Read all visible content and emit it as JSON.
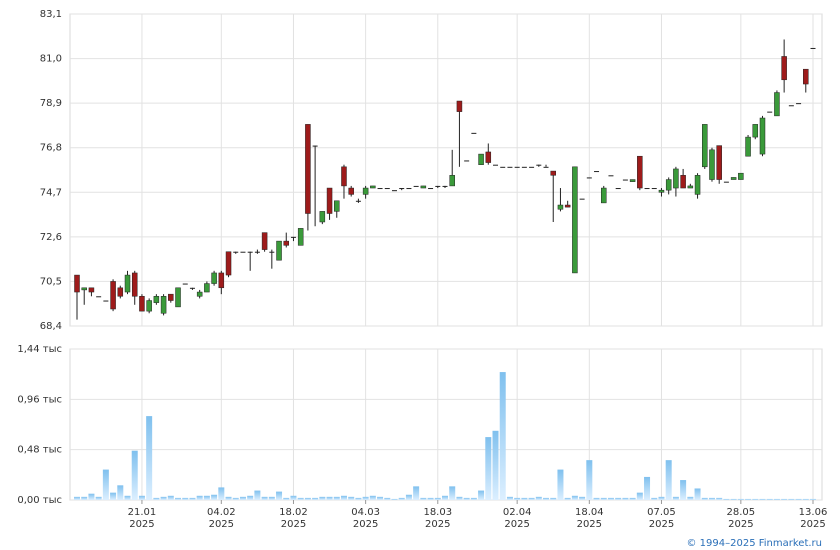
{
  "chart_data": {
    "type": "candlestick",
    "categories": [
      null,
      null,
      null,
      null,
      null,
      null,
      null,
      null,
      null,
      "21.01\n2025",
      null,
      null,
      null,
      null,
      null,
      null,
      null,
      null,
      null,
      null,
      "04.02\n2025",
      null,
      null,
      null,
      null,
      null,
      null,
      null,
      null,
      null,
      "18.02\n2025",
      null,
      null,
      null,
      null,
      null,
      null,
      null,
      null,
      null,
      "04.03\n2025",
      null,
      null,
      null,
      null,
      null,
      null,
      null,
      null,
      null,
      "18.03\n2025",
      null,
      null,
      null,
      null,
      null,
      null,
      null,
      null,
      null,
      null,
      "02.04\n2025",
      null,
      null,
      null,
      null,
      null,
      null,
      null,
      null,
      null,
      "18.04\n2025",
      null,
      null,
      null,
      null,
      null,
      null,
      null,
      null,
      null,
      "07.05\n2025",
      null,
      null,
      null,
      null,
      null,
      null,
      null,
      null,
      null,
      null,
      "28.05\n2025",
      null,
      null,
      null,
      null,
      null,
      null,
      null,
      null,
      null,
      "13.06\n2025"
    ],
    "open": [
      70.8,
      70.1,
      70.2,
      69.8,
      69.6,
      70.5,
      70.2,
      70.0,
      70.9,
      69.8,
      69.1,
      69.5,
      69.0,
      69.9,
      69.3,
      70.4,
      70.2,
      69.8,
      70.0,
      70.4,
      70.9,
      71.9,
      71.9,
      71.9,
      71.9,
      71.9,
      72.8,
      71.9,
      71.5,
      72.4,
      72.6,
      72.2,
      77.9,
      76.9,
      73.3,
      74.9,
      73.8,
      75.9,
      74.9,
      74.3,
      74.6,
      74.9,
      74.9,
      74.9,
      74.8,
      74.9,
      74.9,
      75.0,
      74.9,
      74.9,
      75.0,
      75.0,
      75.0,
      79.0,
      76.2,
      77.5,
      76.0,
      76.6,
      76.0,
      75.9,
      75.9,
      75.9,
      75.9,
      75.9,
      76.0,
      75.9,
      75.7,
      73.9,
      74.1,
      70.9,
      74.4,
      75.4,
      75.7,
      74.2,
      75.5,
      74.9,
      75.3,
      75.2,
      76.4,
      74.9,
      74.9,
      74.7,
      74.8,
      74.9,
      75.5,
      74.9,
      74.6,
      75.9,
      75.3,
      76.9,
      75.2,
      75.3,
      75.3,
      76.4,
      77.3,
      76.5,
      78.5,
      78.3,
      81.1,
      78.8,
      78.9,
      80.5,
      81.5
    ],
    "high": [
      70.8,
      70.2,
      70.2,
      69.8,
      69.6,
      70.6,
      70.3,
      71.0,
      71.0,
      69.9,
      69.7,
      69.9,
      69.9,
      69.9,
      70.2,
      70.4,
      70.2,
      70.1,
      70.5,
      71.0,
      71.0,
      71.9,
      71.9,
      71.9,
      71.9,
      72.0,
      72.8,
      72.0,
      72.4,
      72.8,
      72.6,
      73.0,
      77.9,
      76.9,
      73.8,
      74.9,
      74.3,
      76.0,
      75.0,
      74.4,
      75.0,
      75.0,
      74.9,
      74.9,
      74.8,
      74.9,
      74.9,
      75.0,
      75.0,
      74.9,
      75.0,
      75.0,
      76.7,
      79.0,
      76.2,
      77.5,
      76.5,
      77.0,
      76.0,
      75.9,
      75.9,
      75.9,
      75.9,
      75.9,
      76.0,
      76.0,
      75.7,
      74.9,
      74.3,
      75.9,
      74.4,
      75.4,
      75.7,
      75.0,
      75.5,
      74.9,
      75.3,
      75.3,
      76.4,
      74.9,
      74.9,
      74.9,
      75.4,
      75.9,
      75.8,
      75.1,
      75.6,
      77.9,
      76.8,
      76.9,
      75.2,
      75.4,
      75.6,
      77.4,
      77.9,
      78.3,
      78.5,
      79.5,
      81.9,
      78.8,
      78.9,
      80.5,
      81.5
    ],
    "low": [
      68.7,
      69.4,
      69.8,
      69.8,
      69.6,
      69.1,
      69.7,
      69.9,
      69.4,
      69.1,
      69.0,
      69.4,
      68.9,
      69.5,
      69.3,
      70.4,
      70.1,
      69.7,
      70.0,
      70.3,
      69.9,
      70.7,
      71.8,
      71.9,
      71.0,
      71.8,
      71.9,
      71.1,
      71.5,
      72.1,
      72.4,
      72.2,
      72.9,
      73.1,
      73.2,
      73.4,
      73.5,
      74.4,
      74.5,
      74.2,
      74.4,
      74.9,
      74.9,
      74.9,
      74.8,
      74.8,
      74.9,
      75.0,
      74.9,
      74.9,
      74.9,
      74.9,
      75.0,
      75.9,
      76.2,
      77.5,
      76.0,
      76.0,
      76.0,
      75.9,
      75.9,
      75.9,
      75.9,
      75.9,
      75.9,
      75.9,
      73.3,
      73.8,
      74.0,
      70.9,
      74.4,
      75.4,
      75.7,
      74.2,
      75.5,
      74.9,
      75.3,
      75.2,
      74.8,
      74.9,
      74.9,
      74.5,
      74.6,
      74.5,
      74.9,
      74.9,
      74.4,
      75.8,
      75.2,
      75.1,
      75.2,
      75.3,
      75.3,
      76.4,
      77.2,
      76.4,
      78.5,
      78.3,
      79.4,
      78.8,
      78.9,
      79.4,
      81.5
    ],
    "close": [
      70.0,
      70.2,
      70.0,
      69.8,
      69.6,
      69.2,
      69.8,
      70.8,
      69.8,
      69.1,
      69.6,
      69.8,
      69.8,
      69.6,
      70.2,
      70.4,
      70.2,
      70.0,
      70.4,
      70.9,
      70.2,
      70.8,
      71.9,
      71.9,
      71.9,
      71.9,
      72.0,
      71.9,
      72.4,
      72.2,
      72.6,
      73.0,
      73.7,
      76.9,
      73.8,
      73.7,
      74.3,
      75.0,
      74.6,
      74.3,
      74.9,
      75.0,
      74.9,
      74.9,
      74.8,
      74.9,
      74.9,
      75.0,
      75.0,
      74.9,
      75.0,
      75.0,
      75.5,
      78.5,
      76.2,
      77.5,
      76.5,
      76.1,
      76.0,
      75.9,
      75.9,
      75.9,
      75.9,
      75.9,
      76.0,
      75.9,
      75.5,
      74.1,
      74.0,
      75.9,
      74.4,
      75.4,
      75.7,
      74.9,
      75.5,
      74.9,
      75.3,
      75.3,
      74.9,
      74.9,
      74.9,
      74.8,
      75.3,
      75.8,
      74.9,
      75.0,
      75.5,
      77.9,
      76.7,
      75.3,
      75.2,
      75.4,
      75.6,
      77.3,
      77.9,
      78.2,
      78.5,
      79.4,
      80.0,
      78.8,
      78.9,
      79.8,
      81.5
    ],
    "ylim": [
      68.4,
      83.1
    ],
    "yticks": [
      {
        "value": 68.4,
        "label": "68,4"
      },
      {
        "value": 70.5,
        "label": "70,5"
      },
      {
        "value": 72.6,
        "label": "72,6"
      },
      {
        "value": 74.7,
        "label": "74,7"
      },
      {
        "value": 76.8,
        "label": "76,8"
      },
      {
        "value": 78.9,
        "label": "78,9"
      },
      {
        "value": 81.0,
        "label": "81,0"
      },
      {
        "value": 83.1,
        "label": "83,1"
      }
    ],
    "up_color": "#3a9a3a",
    "down_color": "#9e1b1b",
    "volume": {
      "color": "#7fc0ee",
      "values": [
        0.03,
        0.03,
        0.06,
        0.03,
        0.29,
        0.07,
        0.14,
        0.04,
        0.47,
        0.04,
        0.8,
        0.02,
        0.03,
        0.04,
        0.02,
        0.02,
        0.02,
        0.04,
        0.04,
        0.05,
        0.12,
        0.03,
        0.02,
        0.03,
        0.04,
        0.09,
        0.03,
        0.03,
        0.08,
        0.02,
        0.04,
        0.02,
        0.02,
        0.02,
        0.03,
        0.03,
        0.03,
        0.04,
        0.03,
        0.02,
        0.03,
        0.04,
        0.03,
        0.02,
        0.01,
        0.02,
        0.05,
        0.13,
        0.02,
        0.02,
        0.02,
        0.04,
        0.13,
        0.03,
        0.02,
        0.02,
        0.09,
        0.6,
        0.66,
        1.22,
        0.03,
        0.02,
        0.02,
        0.02,
        0.03,
        0.02,
        0.02,
        0.29,
        0.02,
        0.04,
        0.03,
        0.38,
        0.02,
        0.02,
        0.02,
        0.02,
        0.02,
        0.02,
        0.07,
        0.22,
        0.02,
        0.03,
        0.38,
        0.03,
        0.19,
        0.03,
        0.11,
        0.02,
        0.02,
        0.02,
        0.01,
        0.01,
        0.01,
        0.01,
        0.01,
        0.01,
        0.01,
        0.01,
        0.01,
        0.01,
        0.01,
        0.01,
        0.01
      ],
      "ylim": [
        0,
        1.44
      ],
      "yticks": [
        {
          "value": 0,
          "label": "0,00 тыс"
        },
        {
          "value": 0.48,
          "label": "0,48 тыс"
        },
        {
          "value": 0.96,
          "label": "0,96 тыс"
        },
        {
          "value": 1.44,
          "label": "1,44 тыс"
        }
      ]
    }
  },
  "footer": "© 1994–2025 Finmarket.ru"
}
